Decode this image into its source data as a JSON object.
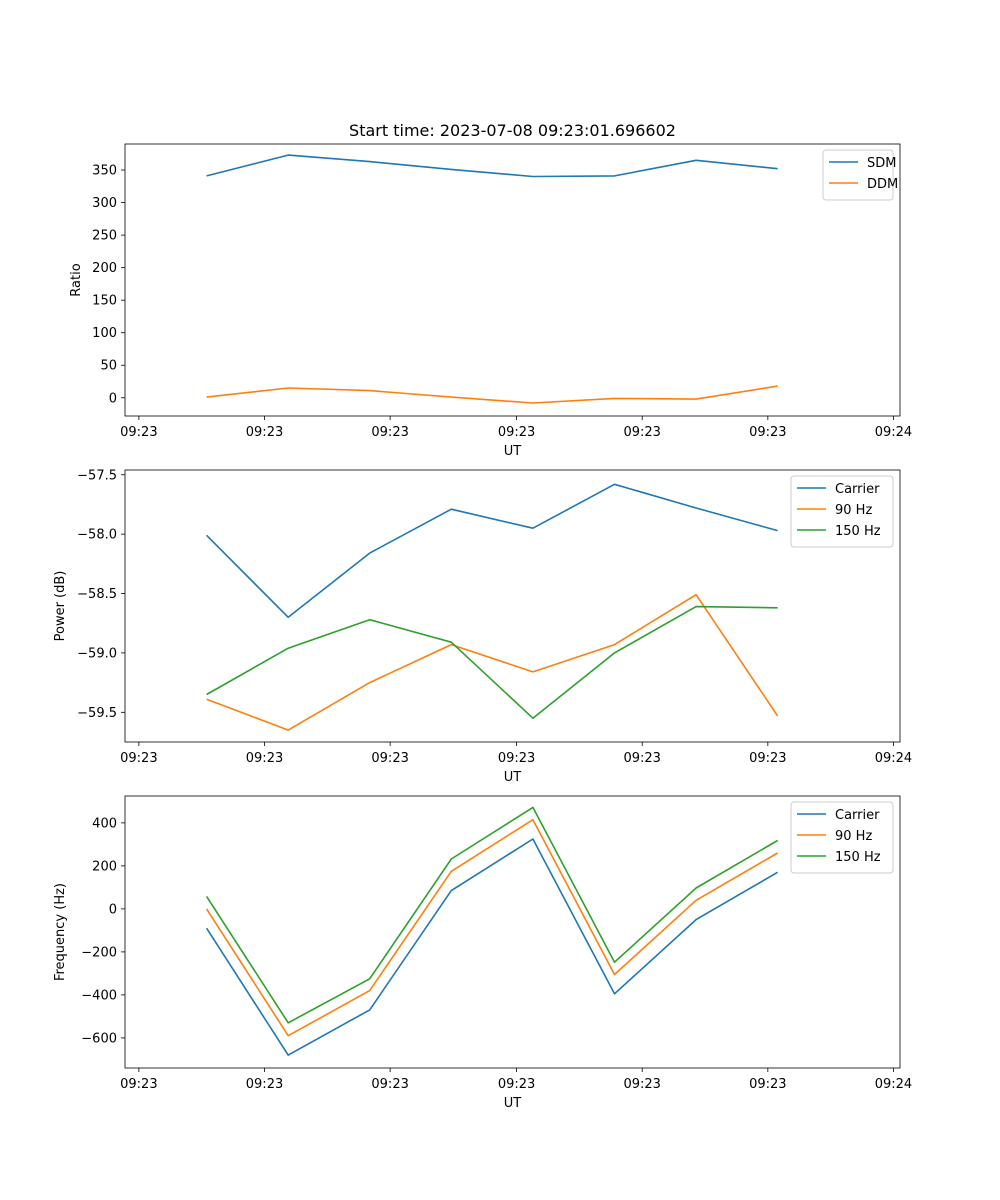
{
  "chart_data": [
    {
      "type": "line",
      "title": "Start time: 2023-07-08 09:23:01.696602",
      "xlabel": "UT",
      "ylabel": "Ratio",
      "x": [
        1,
        2,
        3,
        4,
        5,
        6,
        7,
        8
      ],
      "xlim": [
        0,
        9.5
      ],
      "x_ticks": [
        0.17,
        1.71,
        3.25,
        4.8,
        6.34,
        7.88,
        9.42
      ],
      "x_tick_labels": [
        "09:23",
        "09:23",
        "09:23",
        "09:23",
        "09:23",
        "09:23",
        "09:24"
      ],
      "ylim": [
        -28,
        390
      ],
      "y_ticks": [
        0,
        50,
        100,
        150,
        200,
        250,
        300,
        350
      ],
      "y_tick_labels": [
        "0",
        "50",
        "100",
        "150",
        "200",
        "250",
        "300",
        "350"
      ],
      "legend_position": "top-right",
      "series": [
        {
          "name": "SDM",
          "color": "#1f77b4",
          "values": [
            341,
            373,
            363,
            351,
            340,
            341,
            365,
            352
          ]
        },
        {
          "name": "DDM",
          "color": "#ff7f0e",
          "values": [
            1,
            15,
            11,
            1,
            -8,
            -1,
            -2,
            18
          ]
        }
      ]
    },
    {
      "type": "line",
      "title": "",
      "xlabel": "UT",
      "ylabel": "Power (dB)",
      "x": [
        1,
        2,
        3,
        4,
        5,
        6,
        7,
        8
      ],
      "xlim": [
        0,
        9.5
      ],
      "x_ticks": [
        0.17,
        1.71,
        3.25,
        4.8,
        6.34,
        7.88,
        9.42
      ],
      "x_tick_labels": [
        "09:23",
        "09:23",
        "09:23",
        "09:23",
        "09:23",
        "09:23",
        "09:24"
      ],
      "ylim": [
        -59.75,
        -57.46
      ],
      "y_ticks": [
        -59.5,
        -59.0,
        -58.5,
        -58.0,
        -57.5
      ],
      "y_tick_labels": [
        "−59.5",
        "−59.0",
        "−58.5",
        "−58.0",
        "−57.5"
      ],
      "legend_position": "top-right",
      "series": [
        {
          "name": "Carrier",
          "color": "#1f77b4",
          "values": [
            -58.01,
            -58.7,
            -58.16,
            -57.79,
            -57.95,
            -57.58,
            -57.78,
            -57.97
          ]
        },
        {
          "name": "90 Hz",
          "color": "#ff7f0e",
          "values": [
            -59.39,
            -59.65,
            -59.25,
            -58.93,
            -59.16,
            -58.93,
            -58.51,
            -59.53
          ]
        },
        {
          "name": "150 Hz",
          "color": "#2ca02c",
          "values": [
            -59.35,
            -58.96,
            -58.72,
            -58.91,
            -59.55,
            -59.0,
            -58.61,
            -58.62
          ]
        }
      ]
    },
    {
      "type": "line",
      "title": "",
      "xlabel": "UT",
      "ylabel": "Frequency (Hz)",
      "x": [
        1,
        2,
        3,
        4,
        5,
        6,
        7,
        8
      ],
      "xlim": [
        0,
        9.5
      ],
      "x_ticks": [
        0.17,
        1.71,
        3.25,
        4.8,
        6.34,
        7.88,
        9.42
      ],
      "x_tick_labels": [
        "09:23",
        "09:23",
        "09:23",
        "09:23",
        "09:23",
        "09:23",
        "09:24"
      ],
      "ylim": [
        -740,
        525
      ],
      "y_ticks": [
        -600,
        -400,
        -200,
        0,
        200,
        400
      ],
      "y_tick_labels": [
        "−600",
        "−400",
        "−200",
        "0",
        "200",
        "400"
      ],
      "legend_position": "top-right",
      "series": [
        {
          "name": "Carrier",
          "color": "#1f77b4",
          "values": [
            -90,
            -680,
            -470,
            85,
            325,
            -395,
            -50,
            170
          ]
        },
        {
          "name": "90 Hz",
          "color": "#ff7f0e",
          "values": [
            0,
            -590,
            -380,
            175,
            415,
            -305,
            40,
            260
          ]
        },
        {
          "name": "150 Hz",
          "color": "#2ca02c",
          "values": [
            58,
            -530,
            -325,
            232,
            472,
            -248,
            97,
            318
          ]
        }
      ]
    }
  ]
}
